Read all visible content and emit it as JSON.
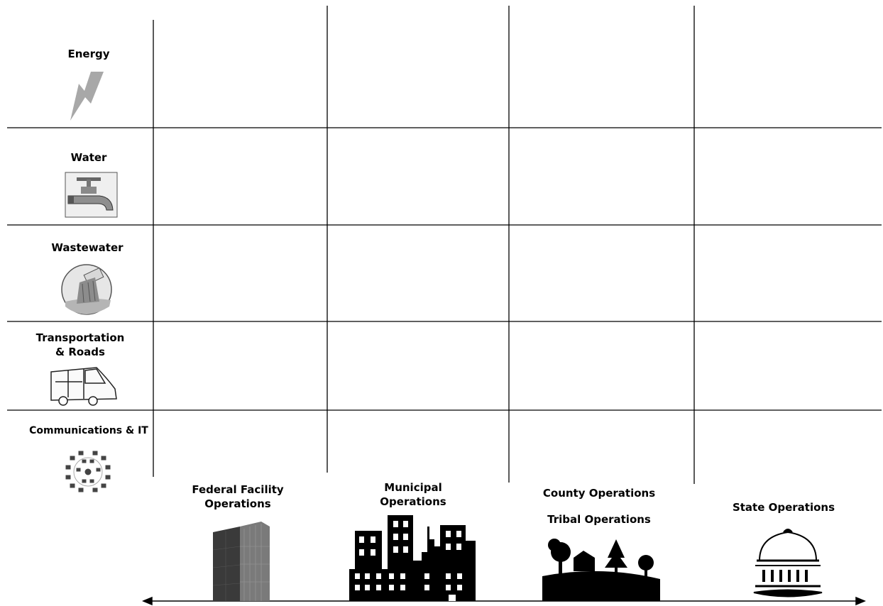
{
  "rows": [
    {
      "label": "Energy",
      "icon": "lightning-bolt-icon"
    },
    {
      "label": "Water",
      "icon": "water-faucet-icon"
    },
    {
      "label": "Wastewater",
      "icon": "wastewater-pipe-icon"
    },
    {
      "label": "Transportation\n& Roads",
      "icon": "van-icon"
    },
    {
      "label": "Communications & IT",
      "icon": "computer-network-icon"
    }
  ],
  "operations": {
    "federal": "Federal Facility\nOperations",
    "municipal": "Municipal\nOperations",
    "county": "County Operations",
    "tribal": "Tribal Operations",
    "state": "State Operations"
  },
  "illustrations": [
    "office-tower-icon",
    "city-skyline-icon",
    "rural-landscape-icon",
    "capitol-dome-icon",
    "double-arrow-axis"
  ]
}
